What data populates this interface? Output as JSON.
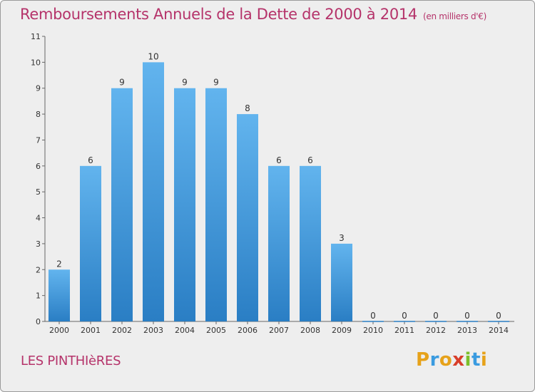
{
  "header": {
    "title": "Remboursements Annuels de la Dette de 2000 à 2014",
    "subtitle": "(en milliers d'€)"
  },
  "footer": {
    "commune": "LES PINTHIèRES",
    "logo_letters": [
      {
        "ch": "P",
        "color": "#e6a21a"
      },
      {
        "ch": "r",
        "color": "#3a9be0"
      },
      {
        "ch": "o",
        "color": "#e6a21a"
      },
      {
        "ch": "x",
        "color": "#d83e2a"
      },
      {
        "ch": "i",
        "color": "#7cbf2a"
      },
      {
        "ch": "t",
        "color": "#3a9be0"
      },
      {
        "ch": "i",
        "color": "#e6a21a"
      }
    ]
  },
  "chart_data": {
    "type": "bar",
    "title": "Remboursements Annuels de la Dette de 2000 à 2014",
    "categories": [
      "2000",
      "2001",
      "2002",
      "2003",
      "2004",
      "2005",
      "2006",
      "2007",
      "2008",
      "2009",
      "2010",
      "2011",
      "2012",
      "2013",
      "2014"
    ],
    "values": [
      2,
      6,
      9,
      10,
      9,
      9,
      8,
      6,
      6,
      3,
      0,
      0,
      0,
      0,
      0
    ],
    "y_ticks": [
      0,
      1,
      2,
      3,
      4,
      5,
      6,
      7,
      8,
      9,
      10,
      11
    ],
    "ylim": [
      0,
      11
    ],
    "grid": false,
    "colors": {
      "bar_top": "#62b4ee",
      "bar_bottom": "#2a7ec4",
      "axis": "#666666"
    }
  }
}
